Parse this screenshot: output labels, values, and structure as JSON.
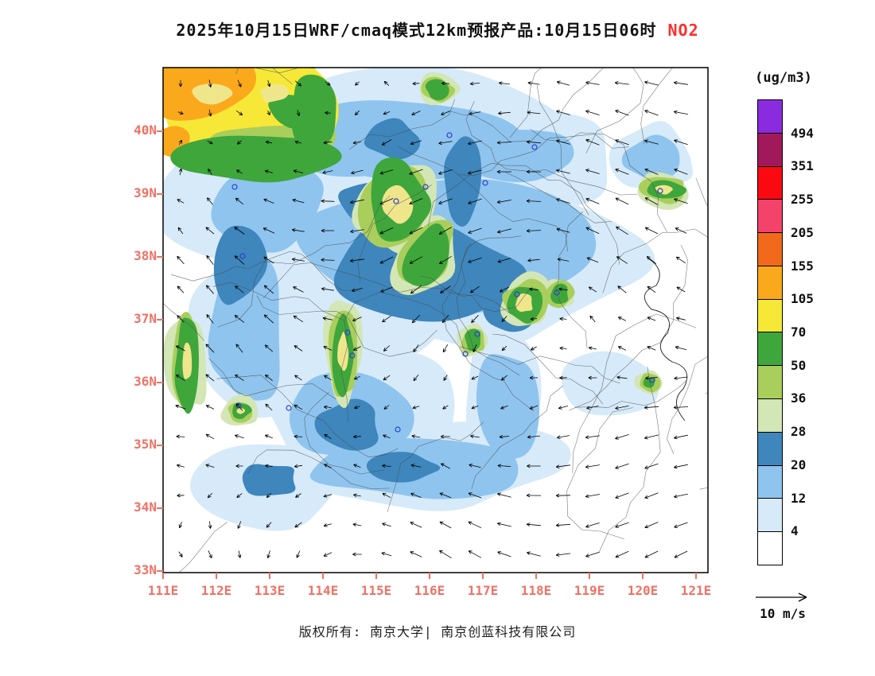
{
  "title": {
    "main": "2025年10月15日WRF/cmaq模式12km预报产品:10月15日06时",
    "species": "NO2"
  },
  "colors": {
    "species_accent": "#FF2D2D",
    "axis_labels": "#EE7265",
    "frame": "#000000"
  },
  "legend": {
    "unit": "(ug/m3)",
    "labels": [
      "494",
      "351",
      "255",
      "205",
      "155",
      "105",
      "70",
      "50",
      "36",
      "28",
      "20",
      "12",
      "4"
    ]
  },
  "axes": {
    "lat_labels": [
      "40N",
      "39N",
      "38N",
      "37N",
      "36N",
      "35N",
      "34N",
      "33N"
    ],
    "lon_labels": [
      "111E",
      "112E",
      "113E",
      "114E",
      "115E",
      "116E",
      "117E",
      "118E",
      "119E",
      "120E",
      "121E"
    ]
  },
  "wind_legend": {
    "label": "10 m/s"
  },
  "footer": {
    "text": "版权所有: 南京大学| 南京创蓝科技有限公司"
  },
  "chart_data": {
    "type": "heatmap",
    "title": "2025年10月15日WRF/cmaq模式12km预报产品:10月15日06时 NO2",
    "variable": "NO2",
    "unit": "ug/m3",
    "model": "WRF/cmaq模式12km",
    "valid_time": "10月15日06时",
    "lon_range": [
      111,
      121.2
    ],
    "lat_range": [
      33,
      41
    ],
    "grid_on": false,
    "legend_position": "right",
    "contour_levels": [
      4,
      12,
      20,
      28,
      36,
      50,
      70,
      105,
      155,
      205,
      255,
      351,
      494
    ],
    "contour_colors": [
      "#FFFFFF",
      "#D6EAF9",
      "#8FC4EE",
      "#3E86BC",
      "#D3E6B5",
      "#A9CE5C",
      "#3FA63C",
      "#F7E838",
      "#FBA91C",
      "#F2691B",
      "#F4436A",
      "#FA0A10",
      "#A1195B",
      "#8B2BE0"
    ],
    "wind_reference_ms": 10,
    "high_regions": [
      {
        "lon": 111.4,
        "lat": 40.6,
        "level_range": "105-155",
        "note": "northwest corner orange/yellow maximum"
      },
      {
        "lon": 112.3,
        "lat": 40.2,
        "level_range": "70-105",
        "note": "yellow band with green fringe"
      },
      {
        "lon": 115.4,
        "lat": 39.0,
        "level_range": "50-70",
        "note": "green blob with pale-yellow core"
      },
      {
        "lon": 114.4,
        "lat": 36.9,
        "level_range": "50-70",
        "note": "north-south green strip"
      },
      {
        "lon": 111.4,
        "lat": 36.9,
        "level_range": "50-70",
        "note": "green strip at west edge"
      },
      {
        "lon": 117.8,
        "lat": 37.3,
        "level_range": "50-70",
        "note": "green blob"
      },
      {
        "lon": 120.3,
        "lat": 39.2,
        "level_range": "50-70",
        "note": "green blob near northeast coast"
      },
      {
        "lon": 116.4,
        "lat": 38.2,
        "level_range": "20-28",
        "note": "broad dark steel-blue area"
      },
      {
        "lon": 113.1,
        "lat": 34.7,
        "level_range": "20-28",
        "note": "southern blue band"
      }
    ]
  }
}
